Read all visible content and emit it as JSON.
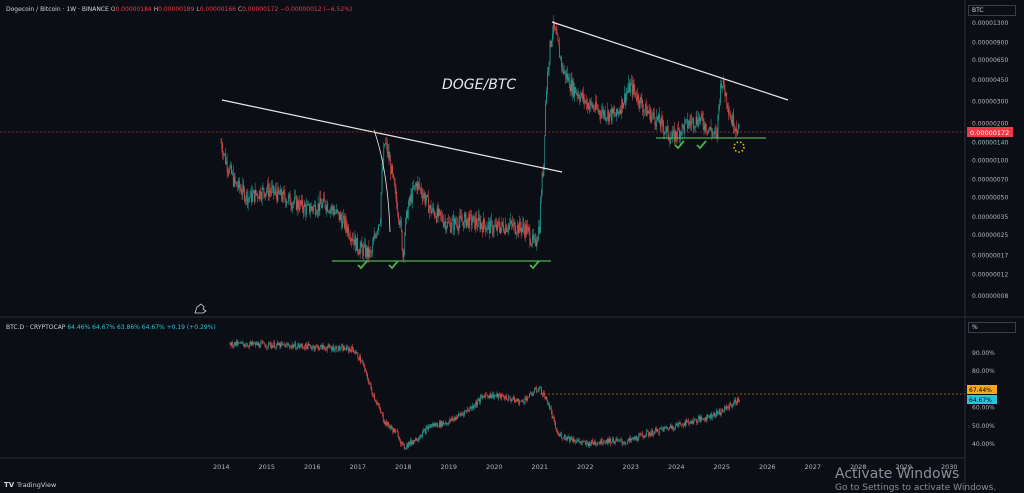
{
  "main_legend": {
    "symbol": "Dogecoin / Bitcoin · 1W · BINANCE",
    "o_label": "O",
    "o": "0.00000184",
    "h_label": "H",
    "h": "0.00000189",
    "l_label": "L",
    "l": "0.00000166",
    "c_label": "C",
    "c": "0.00000172",
    "change": "−0.00000012 (−6.52%)"
  },
  "currency_button": "BTC",
  "chart_title": "DOGE/BTC",
  "last_price_tag": "0.00000172",
  "sub_legend": {
    "symbol": "BTC.D · CRYPTOCAP",
    "o": "64.46%",
    "h": "64.67%",
    "l": "63.86%",
    "c": "64.67%",
    "change": "+0.19 (+0.29%)"
  },
  "percent_button": "%",
  "sub_price_tags": {
    "high": "67.44%",
    "current": "64.67%"
  },
  "brand": "TradingView",
  "watermark": {
    "line1": "Activate Windows",
    "line2": "Go to Settings to activate Windows."
  },
  "colors": {
    "up": "#26a69a",
    "down": "#ef5350",
    "accent_green": "#4caf50",
    "last_price": "#f23645",
    "dominance": "#26c6da",
    "high_tag": "#f5a623"
  },
  "chart_data": [
    {
      "type": "candlestick",
      "title": "DOGE/BTC",
      "scale": "log",
      "y_ticks": [
        "0.00001300",
        "0.00000900",
        "0.00000650",
        "0.00000450",
        "0.00000300",
        "0.00000200",
        "0.00000140",
        "0.00000100",
        "0.00000070",
        "0.00000050",
        "0.00000035",
        "0.00000025",
        "0.00000017",
        "0.00000012",
        "0.00000008"
      ],
      "x": [
        2014.0,
        2014.1,
        2014.3,
        2014.6,
        2015.0,
        2015.5,
        2015.9,
        2016.3,
        2016.6,
        2017.0,
        2017.3,
        2017.5,
        2017.6,
        2017.8,
        2018.0,
        2018.1,
        2018.3,
        2018.6,
        2019.0,
        2019.4,
        2019.8,
        2020.0,
        2020.3,
        2020.7,
        2020.9,
        2021.0,
        2021.1,
        2021.3,
        2021.5,
        2021.7,
        2022.0,
        2022.3,
        2022.7,
        2023.0,
        2023.3,
        2023.6,
        2023.9,
        2024.2,
        2024.5,
        2024.9,
        2025.0,
        2025.2,
        2025.4
      ],
      "y": [
        1.4e-06,
        1e-06,
        6.5e-07,
        5e-07,
        5.8e-07,
        4.8e-07,
        4e-07,
        4.5e-07,
        3.5e-07,
        2e-07,
        1.7e-07,
        3.5e-07,
        1.4e-06,
        6e-07,
        1.7e-07,
        4e-07,
        6.5e-07,
        4e-07,
        3e-07,
        3.3e-07,
        3e-07,
        2.8e-07,
        3e-07,
        2.8e-07,
        2e-07,
        3e-07,
        1e-06,
        1.2e-05,
        5.5e-06,
        4e-06,
        3e-06,
        2.5e-06,
        2.3e-06,
        4e-06,
        2.6e-06,
        2.1e-06,
        1.5e-06,
        1.9e-06,
        2.2e-06,
        1.5e-06,
        4.5e-06,
        2.2e-06,
        1.72e-06
      ],
      "last_value": 1.72e-06,
      "annotations": [
        "descending trendline 2014–2021",
        "descending trendline 2021–2026",
        "support lines with check marks"
      ]
    },
    {
      "type": "candlestick",
      "title": "BTC.D · CRYPTOCAP",
      "y_ticks": [
        "90.00%",
        "80.00%",
        "70.00%",
        "60.00%",
        "50.00%",
        "40.00%"
      ],
      "x_ticks": [
        "2014",
        "2015",
        "2016",
        "2017",
        "2018",
        "2019",
        "2020",
        "2021",
        "2022",
        "2023",
        "2024",
        "2025",
        "2026",
        "2027",
        "2028",
        "2029",
        "2030"
      ],
      "x": [
        2014.2,
        2015.0,
        2016.0,
        2016.9,
        2017.1,
        2017.3,
        2017.6,
        2017.9,
        2018.0,
        2018.3,
        2018.6,
        2019.0,
        2019.5,
        2019.8,
        2020.2,
        2020.6,
        2021.0,
        2021.2,
        2021.4,
        2021.7,
        2022.0,
        2022.5,
        2022.9,
        2023.3,
        2023.7,
        2024.1,
        2024.6,
        2025.0,
        2025.4
      ],
      "y": [
        95.0,
        94.5,
        93.5,
        92.0,
        85.0,
        70.0,
        52.0,
        45.0,
        38.0,
        43.0,
        50.0,
        52.0,
        60.0,
        67.0,
        66.0,
        63.0,
        71.0,
        62.0,
        45.0,
        43.0,
        40.0,
        42.0,
        41.0,
        45.0,
        48.0,
        51.0,
        54.0,
        58.0,
        64.67
      ],
      "last_value": 64.67
    }
  ]
}
